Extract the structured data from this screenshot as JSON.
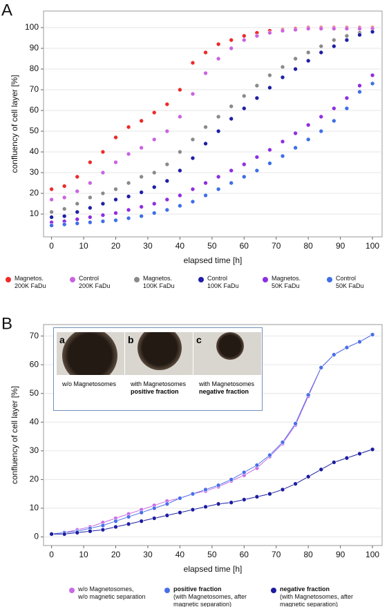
{
  "chart_data": [
    {
      "type": "scatter",
      "panel_label": "A",
      "xlabel": "elapsed time [h]",
      "ylabel": "confluency of cell layer  [%]",
      "x": [
        0,
        4,
        8,
        12,
        16,
        20,
        24,
        28,
        32,
        36,
        40,
        44,
        48,
        52,
        56,
        60,
        64,
        68,
        72,
        76,
        80,
        84,
        88,
        92,
        96,
        100
      ],
      "xlim": [
        -2.5,
        103
      ],
      "xticks": [
        0,
        10,
        20,
        30,
        40,
        50,
        60,
        70,
        80,
        90,
        100
      ],
      "ylim": [
        -1,
        108
      ],
      "yticks": [
        10,
        20,
        30,
        40,
        50,
        60,
        70,
        80,
        90,
        100
      ],
      "grid": true,
      "series": [
        {
          "name": "Magnetos.\n200K FaDu",
          "color": "#ee2a2a",
          "values": [
            22,
            23.5,
            28,
            35,
            40,
            47,
            52,
            55,
            59,
            63,
            70,
            83,
            88,
            92,
            94,
            96,
            97.5,
            98.5,
            99,
            99.5,
            100,
            100,
            100,
            100,
            100,
            100
          ]
        },
        {
          "name": "Control\n200K FaDu",
          "color": "#c964e0",
          "values": [
            17,
            18,
            21,
            25,
            30,
            35,
            39,
            42,
            46,
            50,
            57,
            68,
            78,
            85,
            90,
            94,
            96,
            97.5,
            98.5,
            99,
            99.5,
            99.5,
            99.5,
            99.5,
            99.5,
            99.5
          ]
        },
        {
          "name": "Magnetos.\n100K FaDu",
          "color": "#8a8a8a",
          "values": [
            11,
            12.5,
            15,
            18,
            20,
            22,
            25,
            28,
            30,
            34,
            40,
            46,
            52,
            57,
            62,
            67,
            72,
            77,
            81,
            85,
            88,
            91,
            94,
            96,
            97.5,
            98
          ]
        },
        {
          "name": "Control\n100K FaDu",
          "color": "#1f1fa6",
          "values": [
            8.5,
            9,
            11,
            13,
            15,
            17,
            18.5,
            20.5,
            23,
            26,
            31,
            37,
            44,
            50,
            56,
            61,
            66,
            71,
            76,
            80,
            84,
            88,
            91,
            94,
            96.5,
            98
          ]
        },
        {
          "name": "Magnetos.\n50K FaDu",
          "color": "#8f2ee0",
          "values": [
            6,
            6.5,
            7.5,
            8.5,
            9.5,
            10.5,
            12,
            13.5,
            15,
            17,
            19,
            22,
            25,
            28,
            31,
            34,
            37.5,
            41,
            45,
            49,
            53,
            57,
            61,
            66,
            72,
            77
          ]
        },
        {
          "name": "Control\n50K FaDu",
          "color": "#3f6ee8",
          "values": [
            4.5,
            5,
            5.5,
            6,
            6.5,
            7,
            8,
            9,
            10.5,
            12,
            14,
            16,
            19,
            22,
            25,
            28,
            31,
            34.5,
            38,
            42,
            46,
            50,
            55,
            61,
            69,
            73
          ]
        }
      ]
    },
    {
      "type": "line",
      "panel_label": "B",
      "xlabel": "elapsed time [h]",
      "ylabel": "confluency of cell layer  [%]",
      "x": [
        0,
        4,
        8,
        12,
        16,
        20,
        24,
        28,
        32,
        36,
        40,
        44,
        48,
        52,
        56,
        60,
        64,
        68,
        72,
        76,
        80,
        84,
        88,
        92,
        96,
        100
      ],
      "xlim": [
        -2.5,
        103
      ],
      "xticks": [
        0,
        10,
        20,
        30,
        40,
        50,
        60,
        70,
        80,
        90,
        100
      ],
      "ylim": [
        -3,
        74
      ],
      "yticks": [
        0,
        10,
        20,
        30,
        40,
        50,
        60,
        70
      ],
      "grid": true,
      "markers": true,
      "series": [
        {
          "name": "w/o Magnetosomes,\nw/o magnetic separation",
          "color": "#c86ae6",
          "values": [
            1,
            1.5,
            2.5,
            3.5,
            5,
            6.5,
            8,
            9.5,
            11,
            12.5,
            13.5,
            15,
            16,
            17.5,
            19.5,
            21.5,
            24,
            28,
            32.5,
            39,
            49,
            59,
            63.5,
            66,
            68,
            70.5
          ]
        },
        {
          "name": "positive fraction",
          "name_detail": "(with Magnetosomes, after\nmagnetic separation)",
          "color": "#4a6fe8",
          "values": [
            1,
            1.5,
            2,
            3,
            4,
            5.5,
            7,
            8.5,
            10,
            11.5,
            13.5,
            15,
            16.5,
            18,
            20,
            22.5,
            25,
            28.5,
            33,
            39.5,
            49.5,
            59,
            63.5,
            66,
            68,
            70.5
          ]
        },
        {
          "name": "negative fraction",
          "name_detail": "(with Magnetosomes, after\nmagnetic separation)",
          "color": "#1c1ca0",
          "values": [
            1,
            1,
            1.5,
            2,
            2.5,
            3.5,
            4.5,
            5.5,
            6.5,
            7.5,
            8.5,
            9.5,
            10.5,
            11.5,
            12,
            13,
            14,
            15,
            16.5,
            18.5,
            21,
            23.5,
            26,
            27.5,
            29,
            30.5
          ]
        }
      ],
      "inset": [
        {
          "label": "a",
          "caption": "w/o Magnetosomes"
        },
        {
          "label": "b",
          "caption": "with Magnetosomes",
          "caption_bold": "positive fraction"
        },
        {
          "label": "c",
          "caption": "with Magnetosomes",
          "caption_bold": "negative fraction"
        }
      ]
    }
  ]
}
